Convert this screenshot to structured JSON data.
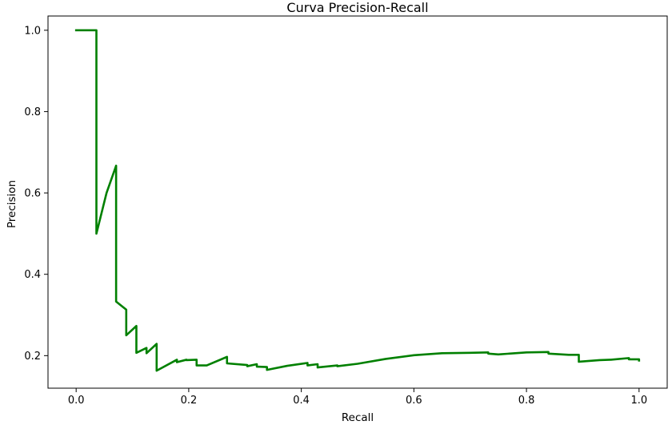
{
  "chart_data": {
    "type": "line",
    "title": "Curva Precision-Recall",
    "xlabel": "Recall",
    "ylabel": "Precision",
    "xlim": [
      -0.05,
      1.05
    ],
    "ylim": [
      0.12,
      1.035
    ],
    "xticks": [
      "0.0",
      "0.2",
      "0.4",
      "0.6",
      "0.8",
      "1.0"
    ],
    "yticks": [
      "0.2",
      "0.4",
      "0.6",
      "0.8",
      "1.0"
    ],
    "grid": false,
    "legend": "none",
    "series": [
      {
        "color": "#008000",
        "x": [
          0.0,
          0.036,
          0.036,
          0.054,
          0.071,
          0.071,
          0.089,
          0.089,
          0.107,
          0.107,
          0.125,
          0.125,
          0.143,
          0.143,
          0.179,
          0.179,
          0.196,
          0.196,
          0.214,
          0.214,
          0.232,
          0.268,
          0.268,
          0.304,
          0.304,
          0.321,
          0.321,
          0.339,
          0.339,
          0.375,
          0.411,
          0.411,
          0.429,
          0.429,
          0.464,
          0.464,
          0.5,
          0.55,
          0.6,
          0.65,
          0.7,
          0.732,
          0.732,
          0.75,
          0.8,
          0.839,
          0.839,
          0.875,
          0.893,
          0.893,
          0.93,
          0.95,
          0.982,
          0.982,
          1.0,
          1.0
        ],
        "y": [
          1.0,
          1.0,
          0.5,
          0.6,
          0.667,
          0.333,
          0.313,
          0.25,
          0.273,
          0.207,
          0.219,
          0.206,
          0.229,
          0.163,
          0.19,
          0.184,
          0.19,
          0.189,
          0.19,
          0.176,
          0.176,
          0.197,
          0.181,
          0.177,
          0.174,
          0.179,
          0.173,
          0.172,
          0.165,
          0.175,
          0.182,
          0.176,
          0.179,
          0.171,
          0.176,
          0.174,
          0.18,
          0.192,
          0.201,
          0.206,
          0.207,
          0.208,
          0.205,
          0.203,
          0.208,
          0.209,
          0.205,
          0.202,
          0.202,
          0.185,
          0.189,
          0.19,
          0.194,
          0.191,
          0.191,
          0.188
        ]
      }
    ]
  }
}
